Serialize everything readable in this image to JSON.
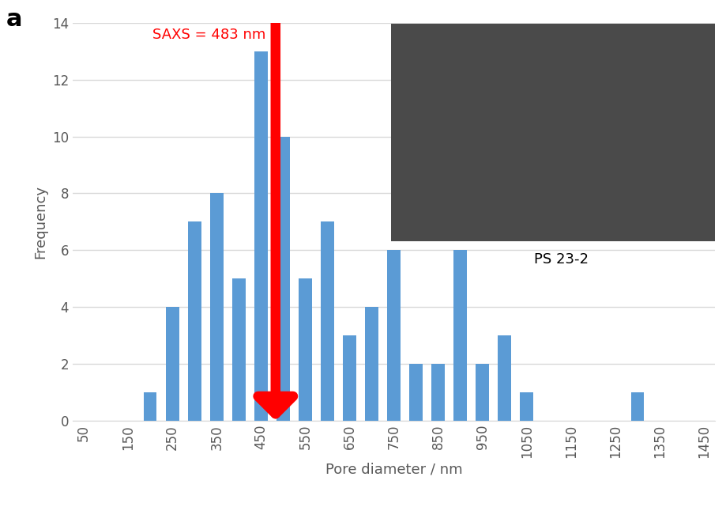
{
  "chart_data": {
    "type": "bar",
    "panel_label": "a",
    "x_label": "Pore diameter / nm",
    "y_label": "Frequency",
    "categories": [
      "50",
      null,
      "150",
      null,
      "250",
      null,
      "350",
      null,
      "450",
      null,
      "550",
      null,
      "650",
      null,
      "750",
      null,
      "850",
      null,
      "950",
      null,
      "1050",
      null,
      "1150",
      null,
      "1250",
      null,
      "1350",
      null,
      "1450"
    ],
    "values": [
      0,
      0,
      0,
      1,
      4,
      7,
      8,
      5,
      13,
      10,
      5,
      7,
      3,
      4,
      6,
      2,
      2,
      6,
      2,
      3,
      1,
      0,
      0,
      0,
      0,
      1,
      0,
      0,
      0
    ],
    "color": "#5b9bd5",
    "ylim": [
      0,
      14
    ],
    "yticks": [
      0,
      2,
      4,
      6,
      8,
      10,
      12,
      14
    ],
    "grid": true,
    "annotation": {
      "text": "SAXS = 483 nm",
      "x": 483,
      "color": "#ff0000"
    },
    "inset_label": "PS 23-2"
  }
}
